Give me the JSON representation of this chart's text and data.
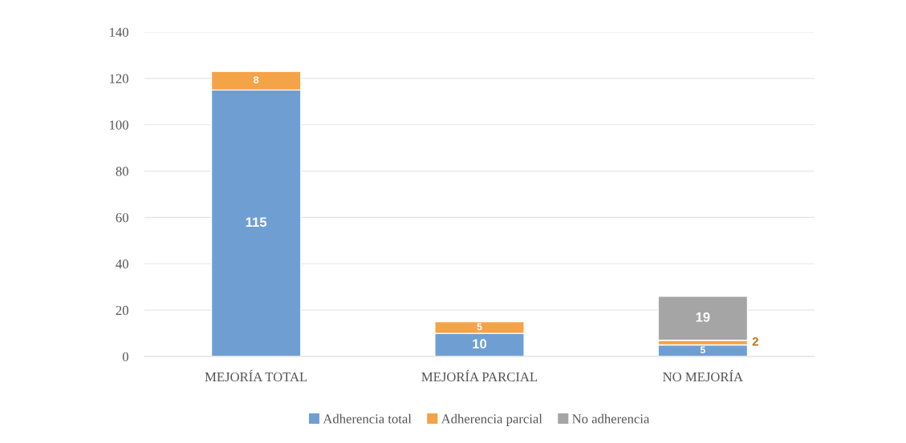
{
  "chart_data": {
    "type": "bar",
    "stacked": true,
    "categories": [
      "MEJORÍA TOTAL",
      "MEJORÍA PARCIAL",
      "NO MEJORÍA"
    ],
    "series": [
      {
        "name": "Adherencia total",
        "color": "#6f9fd2",
        "values": [
          115,
          10,
          5
        ]
      },
      {
        "name": "Adherencia parcial",
        "color": "#f4a347",
        "values": [
          8,
          5,
          2
        ]
      },
      {
        "name": "No adherencia",
        "color": "#a5a5a5",
        "values": [
          null,
          null,
          19
        ]
      }
    ],
    "ylim": [
      0,
      140
    ],
    "yticks": [
      0,
      20,
      40,
      60,
      80,
      100,
      120,
      140
    ],
    "grid": "y",
    "legend": "bottom",
    "data_labels": true
  }
}
